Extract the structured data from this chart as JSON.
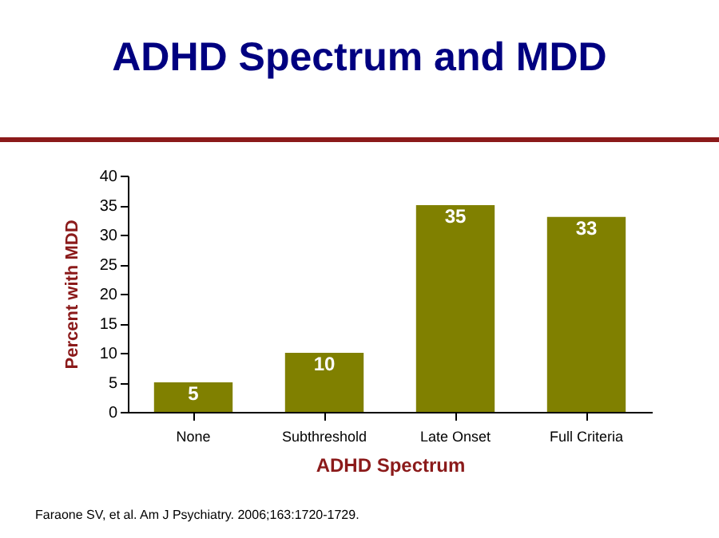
{
  "chart_data": {
    "type": "bar",
    "title": "ADHD Spectrum and MDD",
    "xlabel": "ADHD Spectrum",
    "ylabel": "Percent with MDD",
    "categories": [
      "None",
      "Subthreshold",
      "Late Onset",
      "Full Criteria"
    ],
    "values": [
      5,
      10,
      35,
      33
    ],
    "color": "#808000",
    "ylim": [
      0,
      40
    ],
    "yticks": [
      0,
      5,
      10,
      15,
      20,
      25,
      30,
      35,
      40
    ],
    "grid": false,
    "data_labels": true,
    "annotations": [
      "Faraone SV, et al. Am J Psychiatry. 2006;163:1720-1729."
    ]
  }
}
